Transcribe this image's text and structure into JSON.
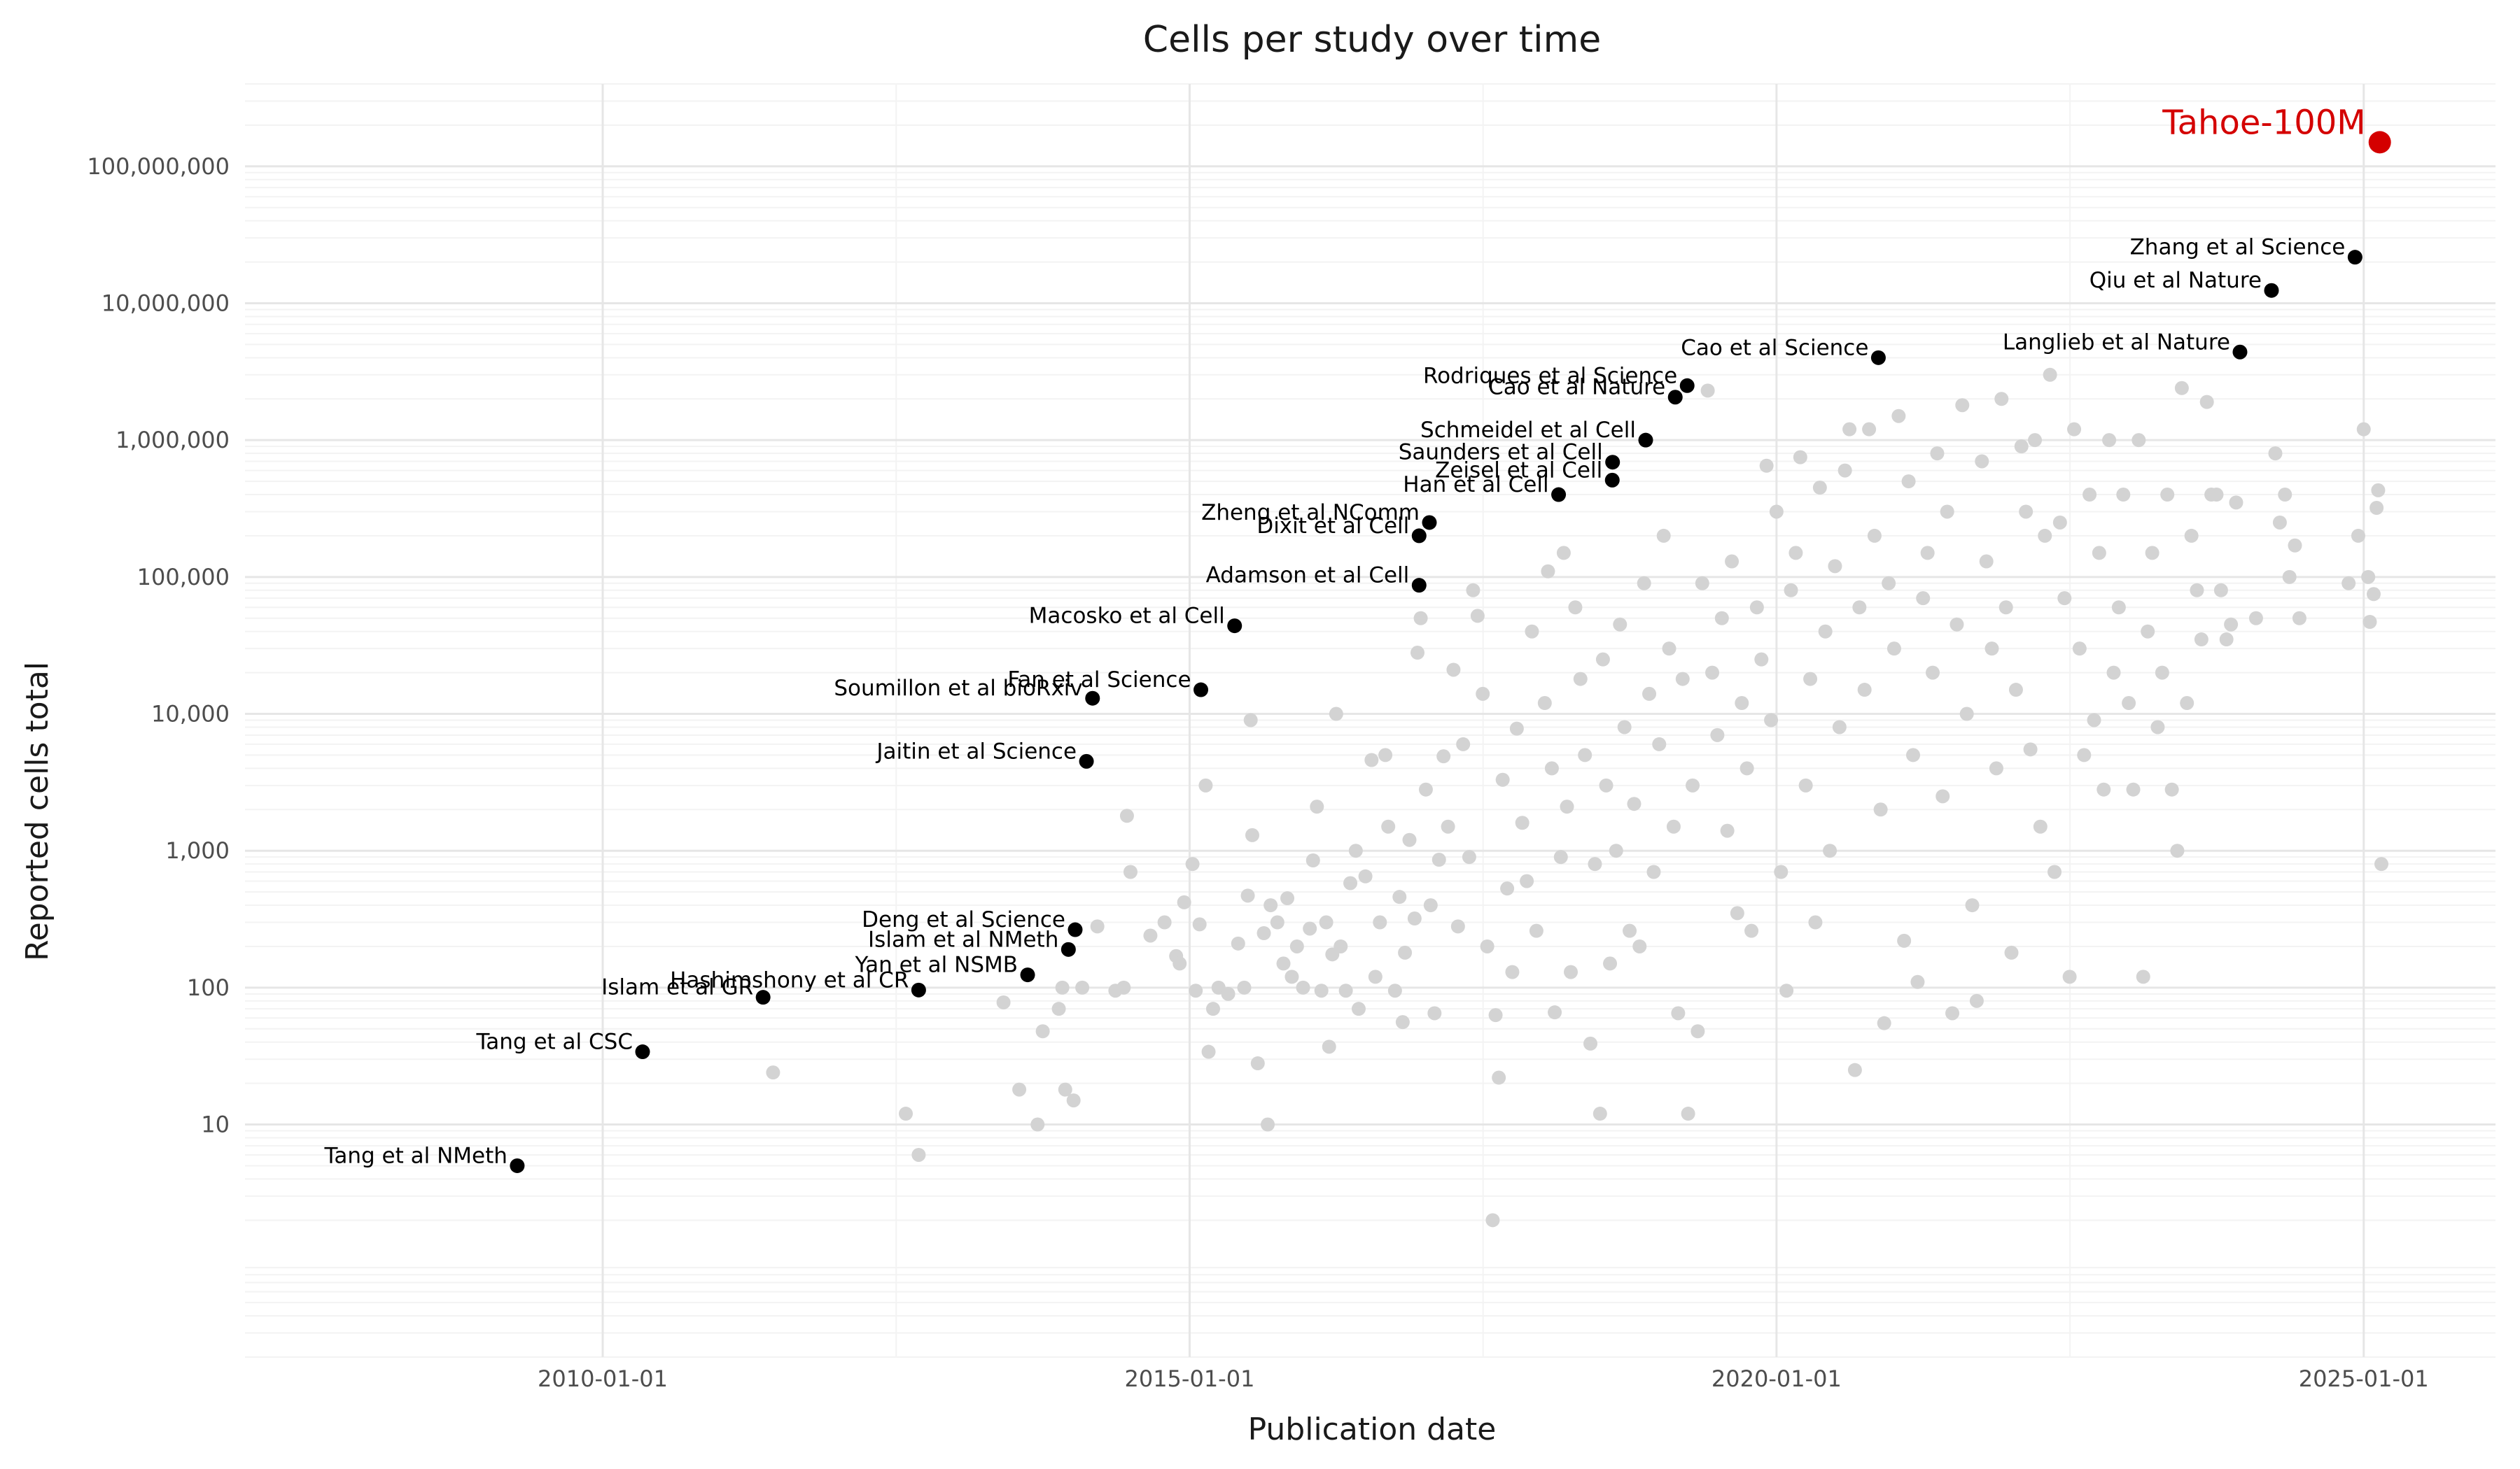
{
  "chart_data": {
    "type": "scatter",
    "title": "Cells per study over time",
    "xlabel": "Publication date",
    "ylabel": "Reported cells total",
    "xaxis": {
      "type": "date",
      "range": [
        "2006-12-15",
        "2026-02-15"
      ],
      "ticks": [
        {
          "value": "2010-01-01",
          "label": "2010-01-01"
        },
        {
          "value": "2015-01-01",
          "label": "2015-01-01"
        },
        {
          "value": "2020-01-01",
          "label": "2020-01-01"
        },
        {
          "value": "2025-01-01",
          "label": "2025-01-01"
        }
      ]
    },
    "yaxis": {
      "scale": "log10",
      "range": [
        0.2,
        400000000
      ],
      "ticks": [
        {
          "value": 10,
          "label": "10"
        },
        {
          "value": 100,
          "label": "100"
        },
        {
          "value": 1000,
          "label": "1,000"
        },
        {
          "value": 10000,
          "label": "10,000"
        },
        {
          "value": 100000,
          "label": "100,000"
        },
        {
          "value": 1000000,
          "label": "1,000,000"
        },
        {
          "value": 10000000,
          "label": "10,000,000"
        },
        {
          "value": 100000000,
          "label": "100,000,000"
        }
      ]
    },
    "grid": true,
    "colors": {
      "background_points": "#d3d3d3",
      "labeled_points": "#000000",
      "highlight": "#d40000"
    },
    "highlight": {
      "label": "Tahoe-100M",
      "date": "2025-02-20",
      "value": 150000000
    },
    "labeled_studies": [
      {
        "label": "Tang et al NMeth",
        "date": "2009-04-10",
        "value": 5
      },
      {
        "label": "Tang et al CSC",
        "date": "2010-05-05",
        "value": 34
      },
      {
        "label": "Islam et al GR",
        "date": "2011-05-15",
        "value": 85
      },
      {
        "label": "Hashimshony et al CR",
        "date": "2012-09-10",
        "value": 96
      },
      {
        "label": "Yan et al NSMB",
        "date": "2013-08-15",
        "value": 124
      },
      {
        "label": "Islam et al NMeth",
        "date": "2013-12-20",
        "value": 190
      },
      {
        "label": "Deng et al Science",
        "date": "2014-01-10",
        "value": 265
      },
      {
        "label": "Jaitin et al Science",
        "date": "2014-02-14",
        "value": 4500
      },
      {
        "label": "Soumillon et al bioRxiv",
        "date": "2014-03-05",
        "value": 13000
      },
      {
        "label": "Fan et al Science",
        "date": "2015-02-05",
        "value": 15000
      },
      {
        "label": "Macosko et al Cell",
        "date": "2015-05-21",
        "value": 44000
      },
      {
        "label": "Adamson et al Cell",
        "date": "2016-12-15",
        "value": 87000
      },
      {
        "label": "Dixit et al Cell",
        "date": "2016-12-15",
        "value": 200000
      },
      {
        "label": "Zheng et al NComm",
        "date": "2017-01-16",
        "value": 250000
      },
      {
        "label": "Han et al Cell",
        "date": "2018-02-22",
        "value": 400000
      },
      {
        "label": "Zeisel et al Cell",
        "date": "2018-08-08",
        "value": 510000
      },
      {
        "label": "Saunders et al Cell",
        "date": "2018-08-09",
        "value": 690000
      },
      {
        "label": "Schmeidel et al Cell",
        "date": "2018-11-20",
        "value": 1000000
      },
      {
        "label": "Cao et al Nature",
        "date": "2019-02-20",
        "value": 2060000
      },
      {
        "label": "Rodriques et al Science",
        "date": "2019-03-29",
        "value": 2500000
      },
      {
        "label": "Cao et al Science",
        "date": "2020-11-13",
        "value": 4000000
      },
      {
        "label": "Langlieb et al Nature",
        "date": "2023-12-13",
        "value": 4400000
      },
      {
        "label": "Qiu et al Nature",
        "date": "2024-03-20",
        "value": 12400000
      },
      {
        "label": "Zhang et al Science",
        "date": "2024-12-05",
        "value": 21700000
      }
    ],
    "other_studies_note": "",
    "other_studies": [
      [
        "2011-06-15",
        24
      ],
      [
        "2012-08-01",
        12
      ],
      [
        "2012-09-10",
        6
      ],
      [
        "2013-06-01",
        78
      ],
      [
        "2013-07-20",
        18
      ],
      [
        "2013-09-15",
        10
      ],
      [
        "2013-10-01",
        48
      ],
      [
        "2013-11-20",
        70
      ],
      [
        "2013-12-01",
        100
      ],
      [
        "2013-12-10",
        18
      ],
      [
        "2014-01-05",
        15
      ],
      [
        "2014-02-01",
        100
      ],
      [
        "2014-03-20",
        280
      ],
      [
        "2014-05-15",
        95
      ],
      [
        "2014-06-10",
        100
      ],
      [
        "2014-07-01",
        700
      ],
      [
        "2014-06-20",
        1800
      ],
      [
        "2014-09-01",
        240
      ],
      [
        "2014-10-15",
        300
      ],
      [
        "2014-11-20",
        170
      ],
      [
        "2014-12-01",
        150
      ],
      [
        "2014-12-15",
        420
      ],
      [
        "2015-01-10",
        800
      ],
      [
        "2015-01-20",
        95
      ],
      [
        "2015-02-01",
        290
      ],
      [
        "2015-03-01",
        34
      ],
      [
        "2015-03-15",
        70
      ],
      [
        "2015-02-20",
        3000
      ],
      [
        "2015-04-01",
        100
      ],
      [
        "2015-05-01",
        90
      ],
      [
        "2015-06-01",
        210
      ],
      [
        "2015-06-20",
        100
      ],
      [
        "2015-07-01",
        470
      ],
      [
        "2015-07-15",
        1300
      ],
      [
        "2015-07-10",
        9000
      ],
      [
        "2015-08-01",
        28
      ],
      [
        "2015-08-20",
        250
      ],
      [
        "2015-09-01",
        10
      ],
      [
        "2015-09-10",
        400
      ],
      [
        "2015-10-01",
        300
      ],
      [
        "2015-10-20",
        150
      ],
      [
        "2015-11-01",
        450
      ],
      [
        "2015-11-15",
        120
      ],
      [
        "2015-12-01",
        200
      ],
      [
        "2015-12-20",
        100
      ],
      [
        "2016-01-10",
        270
      ],
      [
        "2016-01-20",
        850
      ],
      [
        "2016-02-01",
        2100
      ],
      [
        "2016-02-15",
        95
      ],
      [
        "2016-03-01",
        300
      ],
      [
        "2016-03-10",
        37
      ],
      [
        "2016-03-20",
        175
      ],
      [
        "2016-04-01",
        10000
      ],
      [
        "2016-04-15",
        200
      ],
      [
        "2016-05-01",
        95
      ],
      [
        "2016-05-15",
        580
      ],
      [
        "2016-06-01",
        1000
      ],
      [
        "2016-06-10",
        70
      ],
      [
        "2016-07-01",
        650
      ],
      [
        "2016-07-20",
        4600
      ],
      [
        "2016-08-01",
        120
      ],
      [
        "2016-08-15",
        300
      ],
      [
        "2016-09-01",
        5000
      ],
      [
        "2016-09-10",
        1500
      ],
      [
        "2016-10-01",
        95
      ],
      [
        "2016-10-15",
        460
      ],
      [
        "2016-10-25",
        56
      ],
      [
        "2016-11-01",
        180
      ],
      [
        "2016-11-15",
        1200
      ],
      [
        "2016-12-01",
        320
      ],
      [
        "2016-12-10",
        28000
      ],
      [
        "2016-12-20",
        50000
      ],
      [
        "2017-01-05",
        2800
      ],
      [
        "2017-01-20",
        400
      ],
      [
        "2017-02-01",
        65
      ],
      [
        "2017-02-15",
        860
      ],
      [
        "2017-03-01",
        4900
      ],
      [
        "2017-03-15",
        1500
      ],
      [
        "2017-04-01",
        21000
      ],
      [
        "2017-04-15",
        280
      ],
      [
        "2017-05-01",
        6000
      ],
      [
        "2017-05-20",
        900
      ],
      [
        "2017-06-01",
        80000
      ],
      [
        "2017-06-15",
        52000
      ],
      [
        "2017-07-01",
        14000
      ],
      [
        "2017-07-15",
        200
      ],
      [
        "2017-08-01",
        2
      ],
      [
        "2017-08-10",
        63
      ],
      [
        "2017-08-20",
        22
      ],
      [
        "2017-09-01",
        3300
      ],
      [
        "2017-09-15",
        530
      ],
      [
        "2017-10-01",
        130
      ],
      [
        "2017-10-15",
        7800
      ],
      [
        "2017-11-01",
        1600
      ],
      [
        "2017-11-15",
        600
      ],
      [
        "2017-12-01",
        40000
      ],
      [
        "2017-12-15",
        260
      ],
      [
        "2018-01-10",
        12000
      ],
      [
        "2018-01-20",
        110000
      ],
      [
        "2018-02-01",
        4000
      ],
      [
        "2018-02-10",
        66
      ],
      [
        "2018-03-01",
        900
      ],
      [
        "2018-03-10",
        150000
      ],
      [
        "2018-03-20",
        2100
      ],
      [
        "2018-04-01",
        130
      ],
      [
        "2018-04-15",
        60000
      ],
      [
        "2018-05-01",
        18000
      ],
      [
        "2018-05-15",
        5000
      ],
      [
        "2018-06-01",
        39
      ],
      [
        "2018-06-15",
        800
      ],
      [
        "2018-07-01",
        12
      ],
      [
        "2018-07-10",
        25000
      ],
      [
        "2018-07-20",
        3000
      ],
      [
        "2018-08-01",
        150
      ],
      [
        "2018-08-20",
        1000
      ],
      [
        "2018-09-01",
        45000
      ],
      [
        "2018-09-15",
        8000
      ],
      [
        "2018-10-01",
        260
      ],
      [
        "2018-10-15",
        2200
      ],
      [
        "2018-11-01",
        200
      ],
      [
        "2018-11-15",
        90000
      ],
      [
        "2018-12-01",
        14000
      ],
      [
        "2018-12-15",
        700
      ],
      [
        "2019-01-01",
        6000
      ],
      [
        "2019-01-15",
        200000
      ],
      [
        "2019-02-01",
        30000
      ],
      [
        "2019-02-15",
        1500
      ],
      [
        "2019-03-01",
        65
      ],
      [
        "2019-03-15",
        18000
      ],
      [
        "2019-04-01",
        12
      ],
      [
        "2019-04-15",
        3000
      ],
      [
        "2019-05-01",
        48
      ],
      [
        "2019-05-15",
        90000
      ],
      [
        "2019-06-01",
        2300000
      ],
      [
        "2019-06-15",
        20000
      ],
      [
        "2019-07-01",
        7000
      ],
      [
        "2019-07-15",
        50000
      ],
      [
        "2019-08-01",
        1400
      ],
      [
        "2019-08-15",
        130000
      ],
      [
        "2019-09-01",
        350
      ],
      [
        "2019-09-15",
        12000
      ],
      [
        "2019-10-01",
        4000
      ],
      [
        "2019-10-15",
        260
      ],
      [
        "2019-11-01",
        60000
      ],
      [
        "2019-11-15",
        25000
      ],
      [
        "2019-12-01",
        650000
      ],
      [
        "2019-12-15",
        9000
      ],
      [
        "2020-01-01",
        300000
      ],
      [
        "2020-01-15",
        700
      ],
      [
        "2020-02-01",
        95
      ],
      [
        "2020-02-15",
        80000
      ],
      [
        "2020-03-01",
        150000
      ],
      [
        "2020-03-15",
        750000
      ],
      [
        "2020-04-01",
        3000
      ],
      [
        "2020-04-15",
        18000
      ],
      [
        "2020-05-01",
        300
      ],
      [
        "2020-05-15",
        450000
      ],
      [
        "2020-06-01",
        40000
      ],
      [
        "2020-06-15",
        1000
      ],
      [
        "2020-07-01",
        120000
      ],
      [
        "2020-07-15",
        8000
      ],
      [
        "2020-08-01",
        600000
      ],
      [
        "2020-08-15",
        1200000
      ],
      [
        "2020-09-01",
        25
      ],
      [
        "2020-09-15",
        60000
      ],
      [
        "2020-10-01",
        15000
      ],
      [
        "2020-10-15",
        1200000
      ],
      [
        "2020-11-01",
        200000
      ],
      [
        "2020-11-20",
        2000
      ],
      [
        "2020-12-01",
        55
      ],
      [
        "2020-12-15",
        90000
      ],
      [
        "2021-01-01",
        30000
      ],
      [
        "2021-01-15",
        1500000
      ],
      [
        "2021-02-01",
        220
      ],
      [
        "2021-02-15",
        500000
      ],
      [
        "2021-03-01",
        5000
      ],
      [
        "2021-03-15",
        110
      ],
      [
        "2021-04-01",
        70000
      ],
      [
        "2021-04-15",
        150000
      ],
      [
        "2021-05-01",
        20000
      ],
      [
        "2021-05-15",
        800000
      ],
      [
        "2021-06-01",
        2500
      ],
      [
        "2021-06-15",
        300000
      ],
      [
        "2021-07-01",
        65
      ],
      [
        "2021-07-15",
        45000
      ],
      [
        "2021-08-01",
        1800000
      ],
      [
        "2021-08-15",
        10000
      ],
      [
        "2021-09-01",
        400
      ],
      [
        "2021-09-15",
        80
      ],
      [
        "2021-10-01",
        700000
      ],
      [
        "2021-10-15",
        130000
      ],
      [
        "2021-11-01",
        30000
      ],
      [
        "2021-11-15",
        4000
      ],
      [
        "2021-12-01",
        2000000
      ],
      [
        "2021-12-15",
        60000
      ],
      [
        "2022-01-01",
        180
      ],
      [
        "2022-01-15",
        15000
      ],
      [
        "2022-02-01",
        900000
      ],
      [
        "2022-02-15",
        300000
      ],
      [
        "2022-03-01",
        5500
      ],
      [
        "2022-03-15",
        1000000
      ],
      [
        "2022-04-01",
        1500
      ],
      [
        "2022-04-15",
        200000
      ],
      [
        "2022-05-01",
        3000000
      ],
      [
        "2022-05-15",
        700
      ],
      [
        "2022-06-01",
        250000
      ],
      [
        "2022-06-15",
        70000
      ],
      [
        "2022-07-01",
        120
      ],
      [
        "2022-07-15",
        1200000
      ],
      [
        "2022-08-01",
        30000
      ],
      [
        "2022-08-15",
        5000
      ],
      [
        "2022-09-01",
        400000
      ],
      [
        "2022-09-15",
        9000
      ],
      [
        "2022-10-01",
        150000
      ],
      [
        "2022-10-15",
        2800
      ],
      [
        "2022-11-01",
        1000000
      ],
      [
        "2022-11-15",
        20000
      ],
      [
        "2022-12-01",
        60000
      ],
      [
        "2022-12-15",
        400000
      ],
      [
        "2023-01-01",
        12000
      ],
      [
        "2023-01-15",
        2800
      ],
      [
        "2023-02-01",
        1000000
      ],
      [
        "2023-02-15",
        120
      ],
      [
        "2023-03-01",
        40000
      ],
      [
        "2023-03-15",
        150000
      ],
      [
        "2023-04-01",
        8000
      ],
      [
        "2023-04-15",
        20000
      ],
      [
        "2023-05-01",
        400000
      ],
      [
        "2023-05-15",
        2800
      ],
      [
        "2023-06-01",
        1000
      ],
      [
        "2023-06-15",
        2400000
      ],
      [
        "2023-07-01",
        12000
      ],
      [
        "2023-07-15",
        200000
      ],
      [
        "2023-08-01",
        80000
      ],
      [
        "2023-08-15",
        35000
      ],
      [
        "2023-09-01",
        1900000
      ],
      [
        "2023-09-15",
        400000
      ],
      [
        "2023-10-01",
        400000
      ],
      [
        "2023-10-15",
        80000
      ],
      [
        "2023-11-01",
        35000
      ],
      [
        "2023-11-15",
        45000
      ],
      [
        "2023-12-01",
        350000
      ],
      [
        "2024-02-01",
        50000
      ],
      [
        "2024-04-01",
        800000
      ],
      [
        "2024-04-15",
        250000
      ],
      [
        "2024-05-01",
        400000
      ],
      [
        "2024-05-15",
        100000
      ],
      [
        "2024-06-01",
        170000
      ],
      [
        "2024-06-15",
        50000
      ],
      [
        "2024-11-15",
        90000
      ],
      [
        "2024-12-15",
        200000
      ],
      [
        "2025-01-01",
        1200000
      ],
      [
        "2025-01-15",
        100000
      ],
      [
        "2025-01-20",
        47000
      ],
      [
        "2025-02-01",
        75000
      ],
      [
        "2025-02-10",
        320000
      ],
      [
        "2025-02-15",
        430000
      ],
      [
        "2025-02-25",
        800
      ]
    ]
  }
}
